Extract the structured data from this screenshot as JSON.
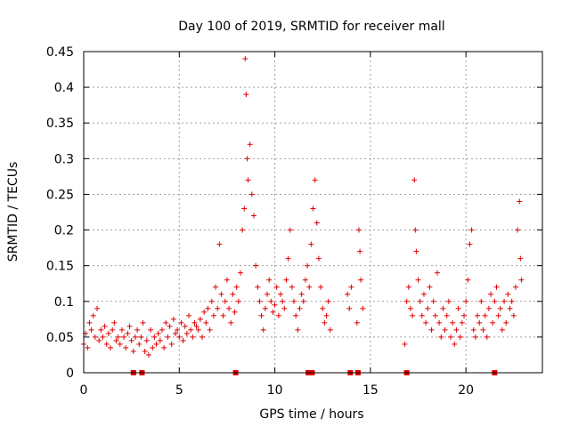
{
  "chart_data": {
    "type": "scatter",
    "title": "Day 100 of 2019, SRMTID for receiver mall",
    "xlabel": "GPS time / hours",
    "ylabel": "SRMTID / TECUs",
    "xlim": [
      0,
      24
    ],
    "ylim": [
      0,
      0.45
    ],
    "x_ticks": [
      0,
      5,
      10,
      15,
      20
    ],
    "x_tick_labels": [
      "0",
      "5",
      "10",
      "15",
      "20"
    ],
    "y_ticks": [
      0,
      0.05,
      0.1,
      0.15,
      0.2,
      0.25,
      0.3,
      0.35,
      0.4,
      0.45
    ],
    "y_tick_labels": [
      "0",
      "0.05",
      "0.1",
      "0.15",
      "0.2",
      "0.25",
      "0.3",
      "0.35",
      "0.4",
      "0.45"
    ],
    "grid": true,
    "series": [
      {
        "name": "SRMTID",
        "color": "#e00000",
        "marker": "plus",
        "points": [
          [
            0.0,
            0.04
          ],
          [
            0.1,
            0.055
          ],
          [
            0.2,
            0.035
          ],
          [
            0.3,
            0.07
          ],
          [
            0.4,
            0.06
          ],
          [
            0.5,
            0.08
          ],
          [
            0.6,
            0.05
          ],
          [
            0.7,
            0.09
          ],
          [
            0.8,
            0.045
          ],
          [
            0.9,
            0.06
          ],
          [
            1.0,
            0.05
          ],
          [
            1.1,
            0.065
          ],
          [
            1.2,
            0.04
          ],
          [
            1.3,
            0.055
          ],
          [
            1.4,
            0.035
          ],
          [
            1.5,
            0.06
          ],
          [
            1.6,
            0.07
          ],
          [
            1.7,
            0.045
          ],
          [
            1.8,
            0.05
          ],
          [
            1.9,
            0.04
          ],
          [
            2.0,
            0.06
          ],
          [
            2.1,
            0.05
          ],
          [
            2.2,
            0.035
          ],
          [
            2.3,
            0.055
          ],
          [
            2.4,
            0.065
          ],
          [
            2.5,
            0.045
          ],
          [
            2.6,
            0.03
          ],
          [
            2.7,
            0.05
          ],
          [
            2.8,
            0.06
          ],
          [
            2.9,
            0.04
          ],
          [
            3.0,
            0.05
          ],
          [
            3.1,
            0.07
          ],
          [
            3.2,
            0.03
          ],
          [
            3.3,
            0.045
          ],
          [
            3.4,
            0.025
          ],
          [
            3.5,
            0.06
          ],
          [
            3.6,
            0.035
          ],
          [
            3.7,
            0.05
          ],
          [
            3.8,
            0.04
          ],
          [
            3.9,
            0.055
          ],
          [
            4.0,
            0.045
          ],
          [
            4.1,
            0.06
          ],
          [
            4.2,
            0.035
          ],
          [
            4.3,
            0.07
          ],
          [
            4.4,
            0.05
          ],
          [
            4.5,
            0.065
          ],
          [
            4.6,
            0.04
          ],
          [
            4.7,
            0.075
          ],
          [
            4.8,
            0.055
          ],
          [
            4.9,
            0.06
          ],
          [
            5.0,
            0.05
          ],
          [
            5.1,
            0.07
          ],
          [
            5.2,
            0.045
          ],
          [
            5.3,
            0.065
          ],
          [
            5.4,
            0.055
          ],
          [
            5.5,
            0.08
          ],
          [
            5.6,
            0.06
          ],
          [
            5.7,
            0.05
          ],
          [
            5.8,
            0.07
          ],
          [
            5.9,
            0.065
          ],
          [
            6.0,
            0.06
          ],
          [
            6.1,
            0.075
          ],
          [
            6.2,
            0.05
          ],
          [
            6.3,
            0.085
          ],
          [
            6.4,
            0.07
          ],
          [
            6.5,
            0.09
          ],
          [
            6.6,
            0.06
          ],
          [
            6.7,
            0.1
          ],
          [
            6.8,
            0.08
          ],
          [
            6.9,
            0.12
          ],
          [
            7.0,
            0.09
          ],
          [
            7.1,
            0.18
          ],
          [
            7.2,
            0.11
          ],
          [
            7.3,
            0.08
          ],
          [
            7.4,
            0.1
          ],
          [
            7.5,
            0.13
          ],
          [
            7.6,
            0.09
          ],
          [
            7.7,
            0.07
          ],
          [
            7.8,
            0.11
          ],
          [
            7.9,
            0.085
          ],
          [
            8.0,
            0.12
          ],
          [
            8.1,
            0.1
          ],
          [
            8.2,
            0.14
          ],
          [
            8.3,
            0.2
          ],
          [
            8.4,
            0.23
          ],
          [
            8.45,
            0.44
          ],
          [
            8.5,
            0.39
          ],
          [
            8.55,
            0.3
          ],
          [
            8.6,
            0.27
          ],
          [
            8.7,
            0.32
          ],
          [
            8.8,
            0.25
          ],
          [
            8.9,
            0.22
          ],
          [
            9.0,
            0.15
          ],
          [
            9.1,
            0.12
          ],
          [
            9.2,
            0.1
          ],
          [
            9.3,
            0.08
          ],
          [
            9.4,
            0.06
          ],
          [
            9.5,
            0.09
          ],
          [
            9.6,
            0.11
          ],
          [
            9.7,
            0.13
          ],
          [
            9.8,
            0.1
          ],
          [
            9.9,
            0.085
          ],
          [
            10.0,
            0.095
          ],
          [
            10.1,
            0.12
          ],
          [
            10.2,
            0.08
          ],
          [
            10.3,
            0.11
          ],
          [
            10.4,
            0.1
          ],
          [
            10.5,
            0.09
          ],
          [
            10.6,
            0.13
          ],
          [
            10.7,
            0.16
          ],
          [
            10.8,
            0.2
          ],
          [
            10.9,
            0.12
          ],
          [
            11.0,
            0.1
          ],
          [
            11.1,
            0.08
          ],
          [
            11.2,
            0.06
          ],
          [
            11.3,
            0.09
          ],
          [
            11.4,
            0.11
          ],
          [
            11.5,
            0.1
          ],
          [
            11.6,
            0.13
          ],
          [
            11.7,
            0.15
          ],
          [
            11.8,
            0.12
          ],
          [
            11.9,
            0.18
          ],
          [
            12.0,
            0.23
          ],
          [
            12.1,
            0.27
          ],
          [
            12.2,
            0.21
          ],
          [
            12.3,
            0.16
          ],
          [
            12.4,
            0.12
          ],
          [
            12.5,
            0.09
          ],
          [
            12.6,
            0.07
          ],
          [
            12.7,
            0.08
          ],
          [
            12.8,
            0.1
          ],
          [
            12.9,
            0.06
          ],
          [
            13.8,
            0.11
          ],
          [
            13.9,
            0.09
          ],
          [
            14.0,
            0.12
          ],
          [
            14.3,
            0.07
          ],
          [
            14.4,
            0.2
          ],
          [
            14.45,
            0.17
          ],
          [
            14.5,
            0.13
          ],
          [
            14.6,
            0.09
          ],
          [
            16.8,
            0.04
          ],
          [
            16.9,
            0.1
          ],
          [
            17.0,
            0.12
          ],
          [
            17.1,
            0.09
          ],
          [
            17.2,
            0.08
          ],
          [
            17.3,
            0.27
          ],
          [
            17.35,
            0.2
          ],
          [
            17.4,
            0.17
          ],
          [
            17.5,
            0.13
          ],
          [
            17.6,
            0.1
          ],
          [
            17.7,
            0.08
          ],
          [
            17.8,
            0.11
          ],
          [
            17.9,
            0.07
          ],
          [
            18.0,
            0.09
          ],
          [
            18.1,
            0.12
          ],
          [
            18.2,
            0.06
          ],
          [
            18.3,
            0.1
          ],
          [
            18.4,
            0.08
          ],
          [
            18.5,
            0.14
          ],
          [
            18.6,
            0.07
          ],
          [
            18.7,
            0.05
          ],
          [
            18.8,
            0.09
          ],
          [
            18.9,
            0.06
          ],
          [
            19.0,
            0.08
          ],
          [
            19.1,
            0.1
          ],
          [
            19.2,
            0.05
          ],
          [
            19.3,
            0.07
          ],
          [
            19.4,
            0.04
          ],
          [
            19.5,
            0.06
          ],
          [
            19.6,
            0.09
          ],
          [
            19.7,
            0.05
          ],
          [
            19.8,
            0.07
          ],
          [
            19.9,
            0.08
          ],
          [
            20.0,
            0.1
          ],
          [
            20.1,
            0.13
          ],
          [
            20.2,
            0.18
          ],
          [
            20.3,
            0.2
          ],
          [
            20.4,
            0.06
          ],
          [
            20.5,
            0.05
          ],
          [
            20.6,
            0.08
          ],
          [
            20.7,
            0.07
          ],
          [
            20.8,
            0.1
          ],
          [
            20.9,
            0.06
          ],
          [
            21.0,
            0.08
          ],
          [
            21.1,
            0.05
          ],
          [
            21.2,
            0.09
          ],
          [
            21.3,
            0.11
          ],
          [
            21.4,
            0.07
          ],
          [
            21.5,
            0.1
          ],
          [
            21.6,
            0.12
          ],
          [
            21.7,
            0.08
          ],
          [
            21.8,
            0.09
          ],
          [
            21.9,
            0.06
          ],
          [
            22.0,
            0.1
          ],
          [
            22.1,
            0.07
          ],
          [
            22.2,
            0.11
          ],
          [
            22.3,
            0.09
          ],
          [
            22.4,
            0.1
          ],
          [
            22.5,
            0.08
          ],
          [
            22.6,
            0.12
          ],
          [
            22.7,
            0.2
          ],
          [
            22.8,
            0.24
          ],
          [
            22.85,
            0.16
          ],
          [
            22.9,
            0.13
          ]
        ]
      }
    ],
    "gap_markers_x": [
      2.6,
      3.05,
      7.95,
      11.75,
      11.95,
      13.95,
      14.35,
      16.9,
      21.5
    ],
    "legend": "none"
  }
}
